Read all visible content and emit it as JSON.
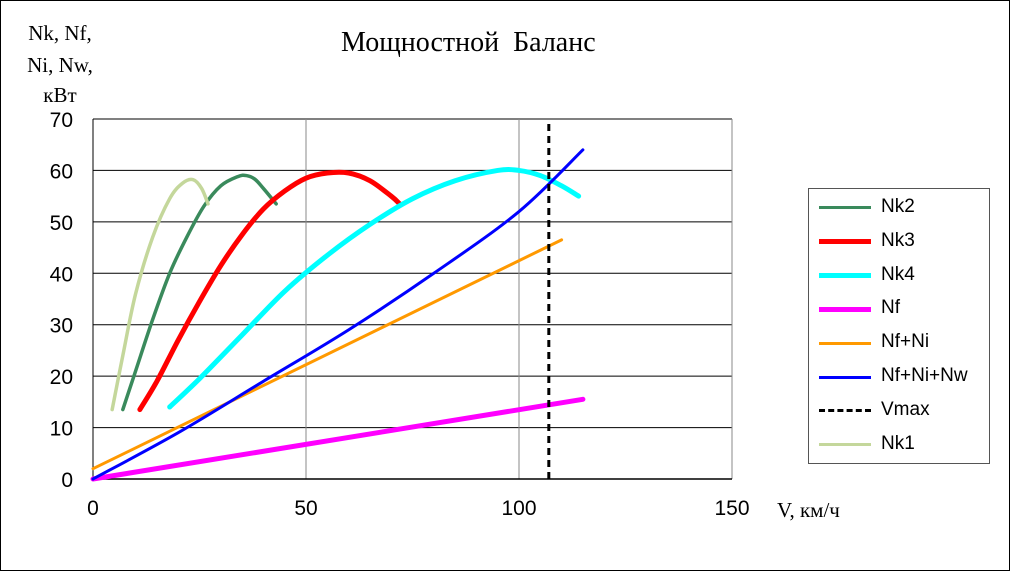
{
  "chart_data": {
    "type": "line",
    "title": "Мощностной  Баланс",
    "ylabel_lines": [
      "Nk, Nf,",
      "Ni, Nw,",
      "кВт"
    ],
    "xlabel": "V, км/ч",
    "xlim": [
      0,
      150
    ],
    "ylim": [
      0,
      70
    ],
    "x_ticks": [
      "0",
      "50",
      "100",
      "150"
    ],
    "y_ticks": [
      "0",
      "10",
      "20",
      "30",
      "40",
      "50",
      "60",
      "70"
    ],
    "grid": true,
    "legend_position": "right",
    "series": [
      {
        "name": "Nk2",
        "color": "#3a8a5c",
        "width": 3.5,
        "x": [
          7,
          10,
          14,
          18,
          22,
          26,
          30,
          34,
          36,
          38,
          40,
          43
        ],
        "y": [
          13.5,
          21,
          31,
          40,
          47,
          53,
          57,
          58.8,
          59,
          58.3,
          56.5,
          53.5
        ]
      },
      {
        "name": "Nk3",
        "color": "#ff0000",
        "width": 5,
        "x": [
          11,
          15,
          20,
          25,
          30,
          35,
          40,
          45,
          50,
          55,
          60,
          65,
          70,
          72
        ],
        "y": [
          13.5,
          19,
          27,
          34.5,
          41.5,
          47.5,
          52.5,
          56,
          58.5,
          59.5,
          59.5,
          58,
          55,
          53.5
        ]
      },
      {
        "name": "Nk4",
        "color": "#00ffff",
        "width": 5,
        "x": [
          18,
          25,
          35,
          45,
          55,
          65,
          75,
          85,
          95,
          100,
          105,
          110,
          114
        ],
        "y": [
          14,
          19.5,
          28,
          36.5,
          43.5,
          49.5,
          54.5,
          58,
          60,
          60,
          59,
          57,
          55
        ]
      },
      {
        "name": "Nf",
        "color": "#ff00ff",
        "width": 5,
        "x": [
          0,
          115
        ],
        "y": [
          0,
          15.5
        ]
      },
      {
        "name": "Nf+Ni",
        "color": "#ff9900",
        "width": 3,
        "x": [
          0,
          110
        ],
        "y": [
          2,
          46.5
        ]
      },
      {
        "name": "Nf+Ni+Nw",
        "color": "#0000ff",
        "width": 3,
        "x": [
          0,
          20,
          40,
          60,
          80,
          100,
          115
        ],
        "y": [
          0,
          9,
          19,
          29,
          40,
          52,
          64
        ]
      },
      {
        "name": "Vmax",
        "color": "#000000",
        "width": 3,
        "dashed": true,
        "x": [
          107,
          107
        ],
        "y": [
          0,
          70
        ]
      },
      {
        "name": "Nk1",
        "color": "#c4d79b",
        "width": 3.5,
        "x": [
          4.5,
          7,
          10,
          14,
          18,
          21,
          23.5,
          25.5,
          27
        ],
        "y": [
          13.5,
          24,
          36,
          47,
          54.5,
          57.5,
          58.2,
          56.5,
          53.5
        ]
      }
    ]
  }
}
